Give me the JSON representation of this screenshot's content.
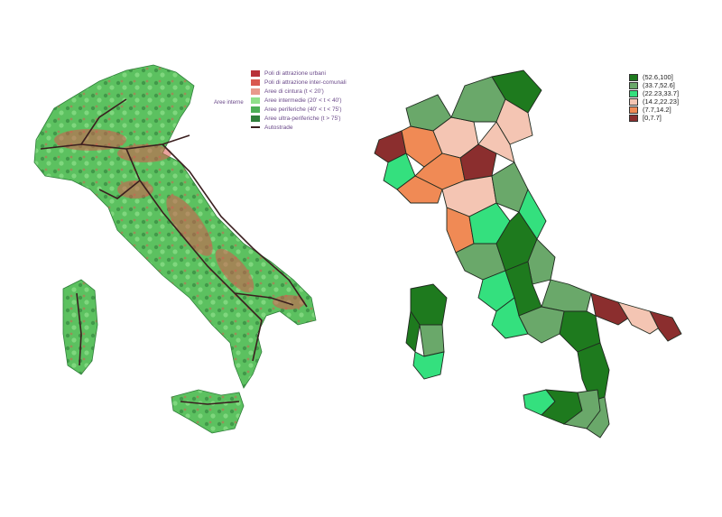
{
  "left_map": {
    "legend": [
      {
        "label": "Poli di attrazione urbani",
        "color": "#b8323a",
        "kind": "box"
      },
      {
        "label": "Poli di attrazione inter-comunali",
        "color": "#d9584f",
        "kind": "box"
      },
      {
        "label": "Aree di cintura (t < 20')",
        "color": "#e89a8c",
        "kind": "box"
      },
      {
        "label": "Aree intermedie (20' < t < 40')",
        "color": "#8fe08a",
        "kind": "box"
      },
      {
        "label": "Aree periferiche (40' < t < 75')",
        "color": "#4caf56",
        "kind": "box"
      },
      {
        "label": "Aree ultra-periferiche (t > 75')",
        "color": "#2f7f3a",
        "kind": "box"
      },
      {
        "label": "Autostrade",
        "color": "#3a1f1f",
        "kind": "line"
      }
    ],
    "group_label": "Aree interne",
    "colors": {
      "base": "#5cc160",
      "urban": "#d9584f",
      "highway": "#3a1f1f"
    }
  },
  "right_map": {
    "legend": [
      {
        "label": "(52.6,100]",
        "color": "#1e7a1e"
      },
      {
        "label": "(33.7,52.6]",
        "color": "#6aa86a"
      },
      {
        "label": "(22.23,33.7]",
        "color": "#34e07e"
      },
      {
        "label": "(14.2,22.23]",
        "color": "#f4c5b3"
      },
      {
        "label": "(7.7,14.2]",
        "color": "#f08a55"
      },
      {
        "label": "[0,7.7]",
        "color": "#8b2e2e"
      }
    ]
  }
}
